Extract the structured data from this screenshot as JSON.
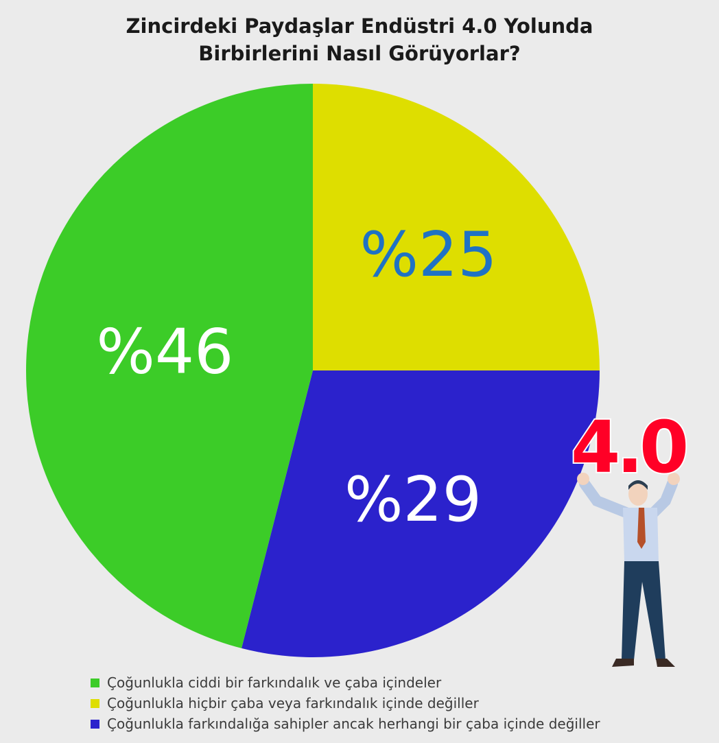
{
  "title_lines": [
    "Zincirdeki Paydaşlar Endüstri 4.0 Yolunda",
    "Birbirlerini Nasıl Görüyorlar?"
  ],
  "chart_data": {
    "type": "pie",
    "slices": [
      {
        "name": "Çoğunlukla hiçbir çaba veya farkındalık içinde değiller",
        "value": 25,
        "label": "%25",
        "color": "#dede00",
        "label_color": "#1f72c4"
      },
      {
        "name": "Çoğunlukla farkındalığa sahipler ancak herhangi bir çaba içinde değiller",
        "value": 29,
        "label": "%29",
        "color": "#2b22cc",
        "label_color": "#ffffff"
      },
      {
        "name": "Çoğunlukla ciddi bir farkındalık ve çaba içindeler",
        "value": 46,
        "label": "%46",
        "color": "#3ccc28",
        "label_color": "#ffffff"
      }
    ],
    "start_angle": "12 o'clock",
    "direction": "clockwise",
    "legend_position": "bottom"
  },
  "legend": [
    {
      "label": "Çoğunlukla ciddi bir farkındalık ve çaba içindeler",
      "color": "#3ccc28"
    },
    {
      "label": "Çoğunlukla hiçbir çaba veya farkındalık içinde değiller",
      "color": "#dede00"
    },
    {
      "label": "Çoğunlukla farkındalığa sahipler ancak herhangi bir çaba içinde değiller",
      "color": "#2b22cc"
    }
  ],
  "illustration": {
    "sign_text": "4.0",
    "sign_color": "#ff0026"
  }
}
